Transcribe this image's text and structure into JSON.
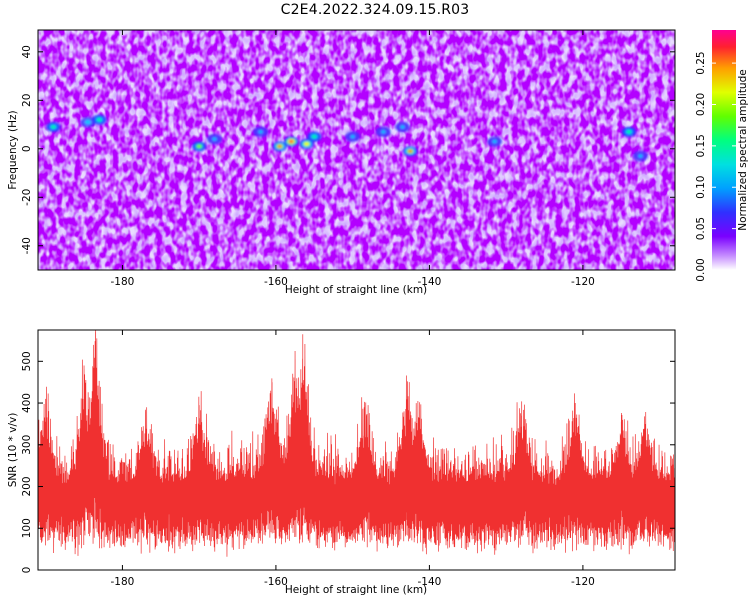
{
  "title": "C2E4.2022.324.09.15.R03",
  "chart_data": [
    {
      "type": "heatmap",
      "name": "spectrogram",
      "xlabel": "Height of straight line (km)",
      "ylabel": "Frequency (Hz)",
      "xlim": [
        -191,
        -108
      ],
      "ylim": [
        -50,
        49
      ],
      "xticks": [
        -180,
        -160,
        -140,
        -120
      ],
      "xtick_labels": [
        "-180",
        "-160",
        "-140",
        "-120"
      ],
      "yticks": [
        -40,
        -20,
        0,
        20,
        40
      ],
      "ytick_labels": [
        "-40",
        "-20",
        "0",
        "20",
        "40"
      ],
      "colorbar": {
        "label": "Normalized spectral amplitude",
        "range": [
          0,
          0.29
        ],
        "ticks": [
          0.0,
          0.05,
          0.1,
          0.15,
          0.2,
          0.25
        ],
        "tick_labels": [
          "0.00",
          "0.05",
          "0.10",
          "0.15",
          "0.20",
          "0.25"
        ],
        "colormap": [
          "#ffffff",
          "#b86fff",
          "#7400ff",
          "#2040ff",
          "#00c8ff",
          "#00ff90",
          "#80ff00",
          "#ffff00",
          "#ff8000",
          "#ff0040",
          "#ff0090"
        ]
      },
      "hotspots": [
        {
          "x": -189.0,
          "y": 9,
          "value": 0.15
        },
        {
          "x": -184.5,
          "y": 11,
          "value": 0.13
        },
        {
          "x": -183.0,
          "y": 12,
          "value": 0.14
        },
        {
          "x": -170.0,
          "y": 1,
          "value": 0.18
        },
        {
          "x": -168.0,
          "y": 4,
          "value": 0.11
        },
        {
          "x": -162.0,
          "y": 7,
          "value": 0.12
        },
        {
          "x": -159.5,
          "y": 1,
          "value": 0.22
        },
        {
          "x": -158.0,
          "y": 3,
          "value": 0.27
        },
        {
          "x": -156.0,
          "y": 2,
          "value": 0.2
        },
        {
          "x": -155.0,
          "y": 5,
          "value": 0.15
        },
        {
          "x": -150.0,
          "y": 5,
          "value": 0.12
        },
        {
          "x": -146.0,
          "y": 7,
          "value": 0.11
        },
        {
          "x": -142.5,
          "y": -1,
          "value": 0.22
        },
        {
          "x": -143.5,
          "y": 9,
          "value": 0.12
        },
        {
          "x": -131.5,
          "y": 3,
          "value": 0.11
        },
        {
          "x": -114.0,
          "y": 7,
          "value": 0.14
        },
        {
          "x": -112.5,
          "y": -3,
          "value": 0.12
        }
      ],
      "grid": false
    },
    {
      "type": "line",
      "name": "snr",
      "xlabel": "Height of straight line (km)",
      "ylabel": "SNR (10 * v/v)",
      "xlim": [
        -191,
        -108
      ],
      "ylim": [
        0,
        575
      ],
      "xticks": [
        -180,
        -160,
        -140,
        -120
      ],
      "xtick_labels": [
        "-180",
        "-160",
        "-140",
        "-120"
      ],
      "yticks": [
        0,
        100,
        200,
        300,
        400,
        500
      ],
      "ytick_labels": [
        "0",
        "100",
        "200",
        "300",
        "400",
        "500"
      ],
      "color": "#f03030",
      "baseline_band": [
        60,
        230
      ],
      "peaks": [
        {
          "x": -190.0,
          "y": 410
        },
        {
          "x": -185.0,
          "y": 490
        },
        {
          "x": -183.5,
          "y": 570
        },
        {
          "x": -177.0,
          "y": 380
        },
        {
          "x": -170.0,
          "y": 395
        },
        {
          "x": -160.5,
          "y": 450
        },
        {
          "x": -157.5,
          "y": 505
        },
        {
          "x": -156.5,
          "y": 565
        },
        {
          "x": -148.5,
          "y": 390
        },
        {
          "x": -143.0,
          "y": 455
        },
        {
          "x": -141.5,
          "y": 405
        },
        {
          "x": -128.0,
          "y": 370
        },
        {
          "x": -121.0,
          "y": 400
        },
        {
          "x": -115.0,
          "y": 355
        },
        {
          "x": -112.0,
          "y": 330
        }
      ],
      "grid": false
    }
  ]
}
